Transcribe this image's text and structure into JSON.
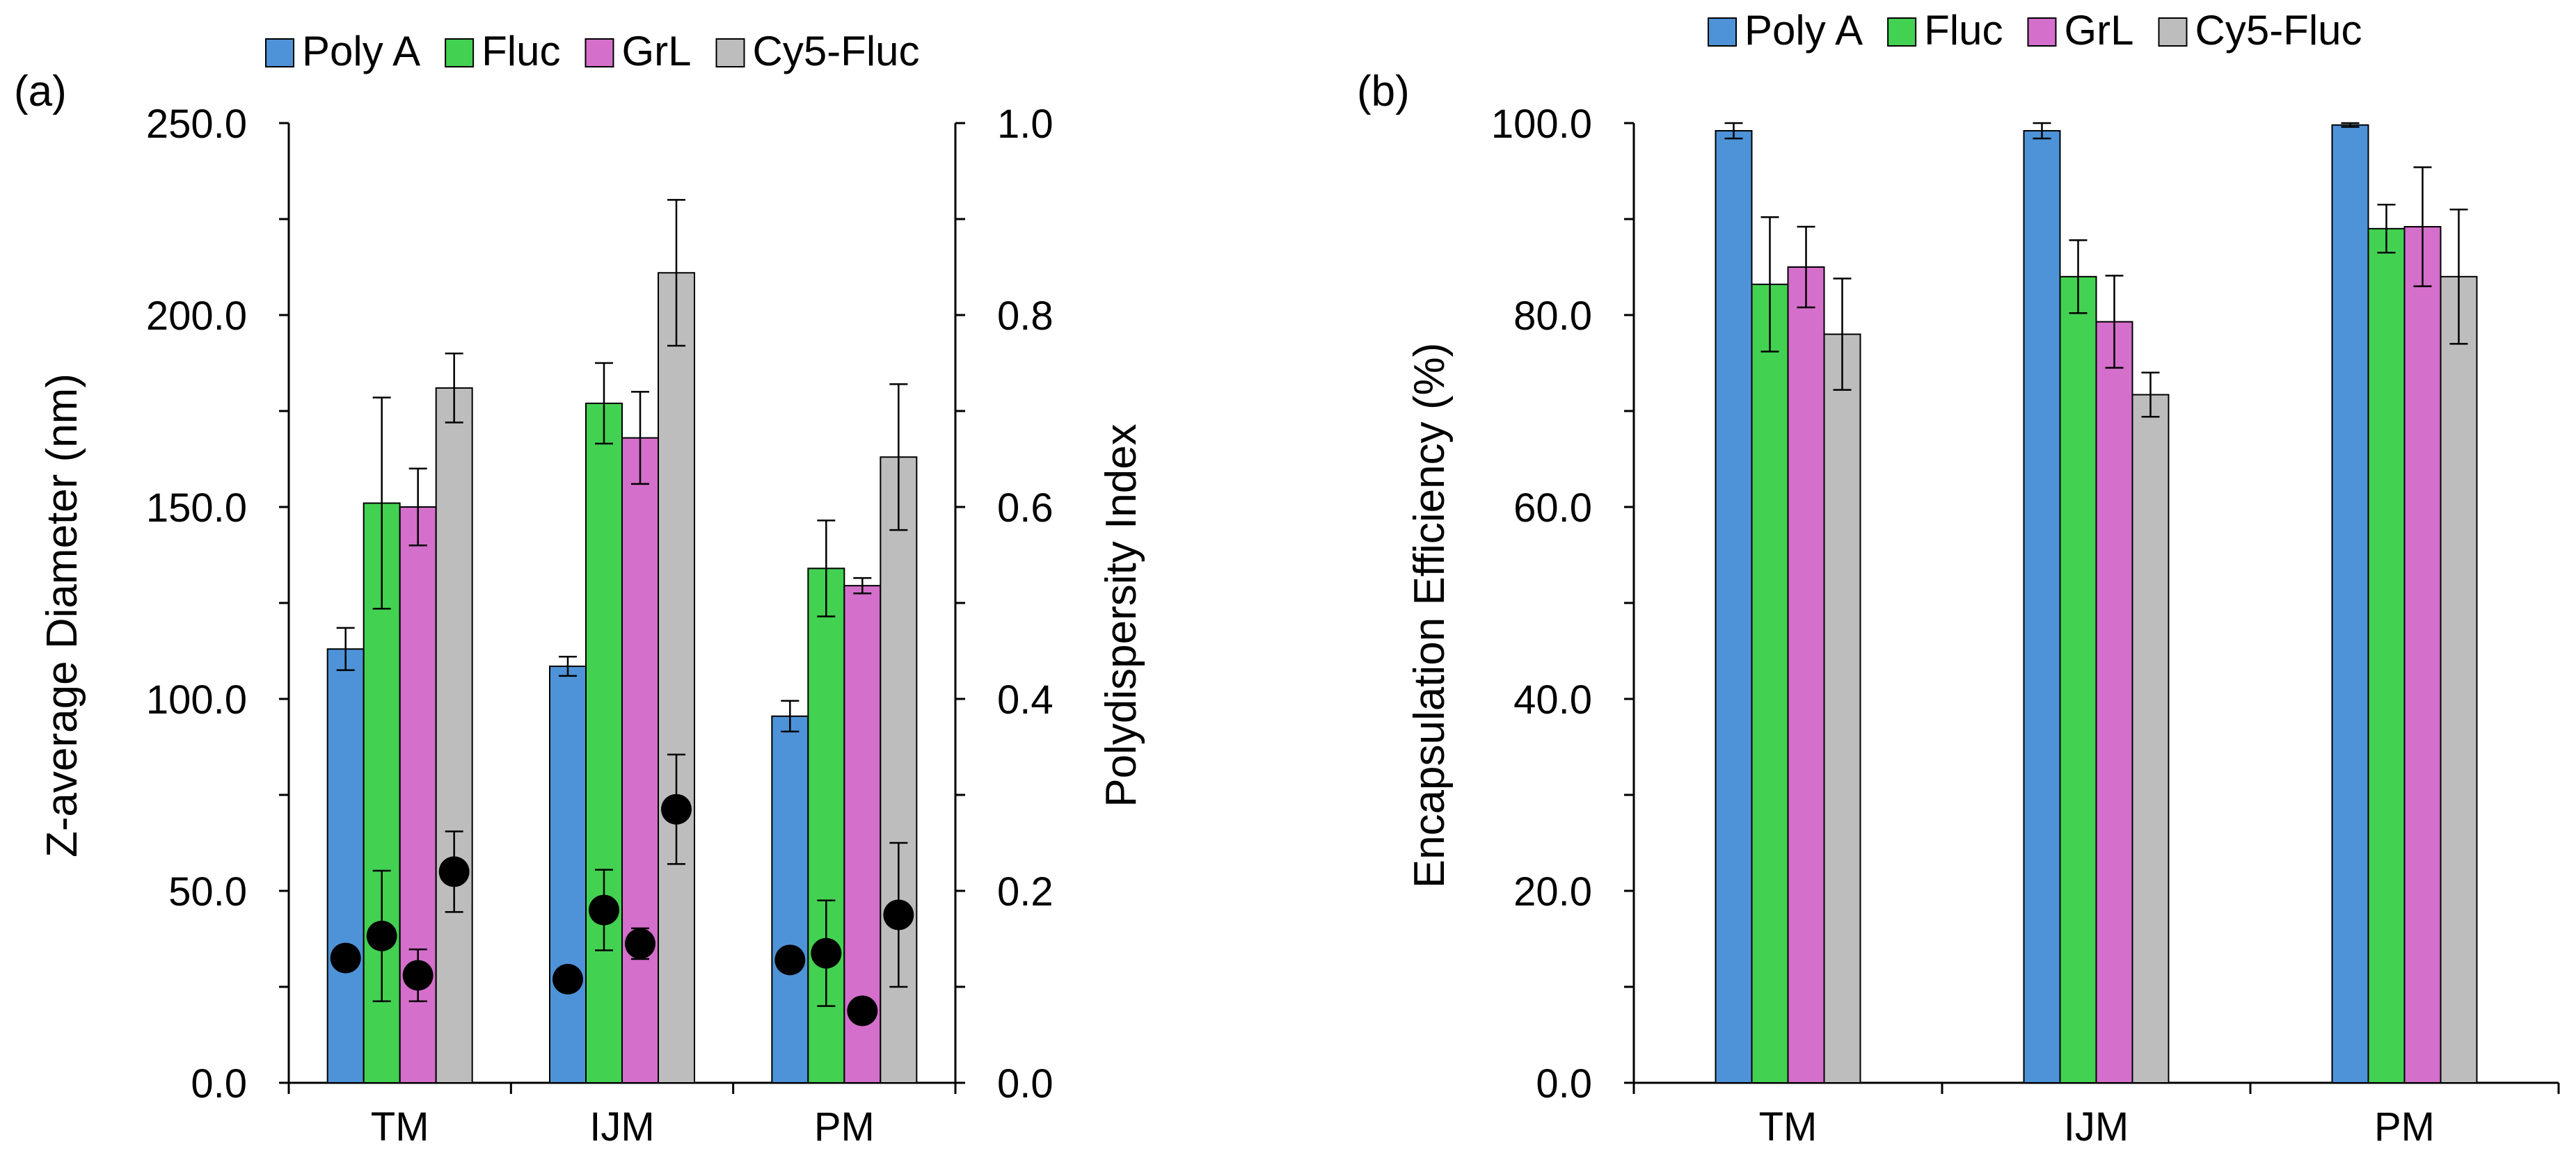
{
  "legend_items": [
    {
      "label": "Poly A",
      "color": "#4e93d8"
    },
    {
      "label": "Fluc",
      "color": "#43d152"
    },
    {
      "label": "GrL",
      "color": "#d46fcb"
    },
    {
      "label": "Cy5-Fluc",
      "color": "#bdbdbd"
    }
  ],
  "chart_data": [
    {
      "panel_label": "(a)",
      "type": "bar",
      "categories": [
        "TM",
        "IJM",
        "PM"
      ],
      "ylabel": "Z-average Diameter (nm)",
      "y2label": "Polydispersity Index",
      "ylim": [
        0,
        250
      ],
      "yticks": [
        "0.0",
        "50.0",
        "100.0",
        "150.0",
        "200.0",
        "250.0"
      ],
      "y2lim": [
        0,
        1
      ],
      "y2ticks": [
        "0.0",
        "0.2",
        "0.4",
        "0.6",
        "0.8",
        "1.0"
      ],
      "legend_position": "top",
      "grid": false,
      "series": [
        {
          "name": "Poly A",
          "values": [
            113,
            108.5,
            95.5
          ],
          "errors": [
            5.5,
            2.5,
            4
          ]
        },
        {
          "name": "Fluc",
          "values": [
            151,
            177,
            134
          ],
          "errors": [
            27.5,
            10.5,
            12.5
          ]
        },
        {
          "name": "GrL",
          "values": [
            150,
            168,
            129.5
          ],
          "errors": [
            10,
            12,
            2
          ]
        },
        {
          "name": "Cy5-Fluc",
          "values": [
            181,
            211,
            163
          ],
          "errors": [
            9,
            19,
            19
          ]
        }
      ],
      "pdi_series": [
        {
          "name": "Poly A",
          "values": [
            0.13,
            0.108,
            0.128
          ],
          "errors": [
            0,
            0,
            0
          ]
        },
        {
          "name": "Fluc",
          "values": [
            0.153,
            0.18,
            0.135
          ],
          "errors": [
            0.068,
            0.042,
            0.055
          ]
        },
        {
          "name": "GrL",
          "values": [
            0.112,
            0.145,
            0.075
          ],
          "errors": [
            0.027,
            0.016,
            0
          ]
        },
        {
          "name": "Cy5-Fluc",
          "values": [
            0.22,
            0.285,
            0.175
          ],
          "errors": [
            0.042,
            0.057,
            0.075
          ]
        }
      ]
    },
    {
      "panel_label": "(b)",
      "type": "bar",
      "categories": [
        "TM",
        "IJM",
        "PM"
      ],
      "ylabel": "Encapsulation Efficiency (%)",
      "ylim": [
        0,
        100
      ],
      "yticks": [
        "0.0",
        "20.0",
        "40.0",
        "60.0",
        "80.0",
        "100.0"
      ],
      "legend_position": "top",
      "grid": false,
      "series": [
        {
          "name": "Poly A",
          "values": [
            99.2,
            99.2,
            99.8
          ],
          "errors": [
            0.8,
            0.8,
            0.2
          ]
        },
        {
          "name": "Fluc",
          "values": [
            83.2,
            84,
            89
          ],
          "errors": [
            7,
            3.8,
            2.5
          ]
        },
        {
          "name": "GrL",
          "values": [
            85,
            79.3,
            89.2
          ],
          "errors": [
            4.2,
            4.8,
            6.2
          ]
        },
        {
          "name": "Cy5-Fluc",
          "values": [
            78,
            71.7,
            84
          ],
          "errors": [
            5.8,
            2.3,
            7
          ]
        }
      ]
    }
  ]
}
